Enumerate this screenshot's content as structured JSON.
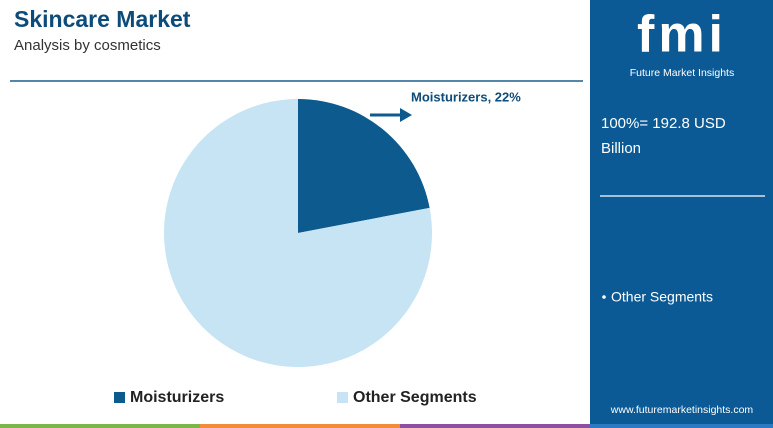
{
  "chart_data": {
    "type": "pie",
    "title": "Skincare Market",
    "subtitle": "Analysis by cosmetics",
    "categories": [
      "Moisturizers",
      "Other Segments"
    ],
    "values": [
      22,
      78
    ],
    "value_labels": [
      "Moisturizers, 22%",
      null
    ],
    "colors": [
      "#0d5a8f",
      "#c6e4f4"
    ],
    "legend": "bottom"
  },
  "sidebar": {
    "logo": "fmi",
    "brand": "Future Market Insights",
    "total": "100%= 192.8 USD Billion",
    "item": "Other Segments",
    "url": "www.futuremarketinsights.com"
  }
}
